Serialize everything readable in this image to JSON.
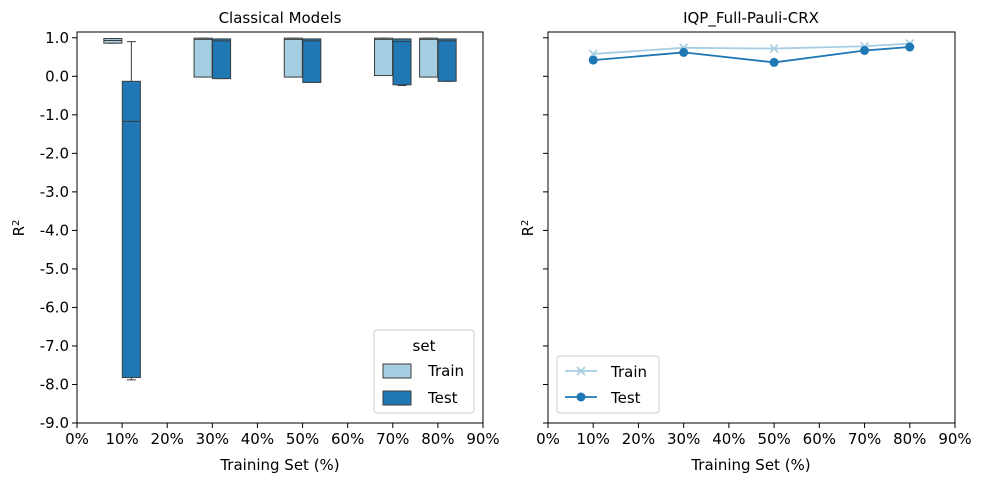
{
  "chart_data": [
    {
      "type": "box",
      "title": "Classical Models",
      "xlabel": "Training Set (%)",
      "ylabel": "R",
      "ylabel_sup": "2",
      "xlim": [
        0,
        90
      ],
      "ylim": [
        -9,
        1.15
      ],
      "x_ticks": [
        0,
        10,
        20,
        30,
        40,
        50,
        60,
        70,
        80,
        90
      ],
      "x_tick_labels": [
        "0%",
        "10%",
        "20%",
        "30%",
        "40%",
        "50%",
        "60%",
        "70%",
        "80%",
        "90%"
      ],
      "y_ticks": [
        1,
        0,
        -1,
        -2,
        -3,
        -4,
        -5,
        -6,
        -7,
        -8,
        -9
      ],
      "y_tick_labels": [
        "1.0",
        "0.0",
        "-1.0",
        "-2.0",
        "-3.0",
        "-4.0",
        "-5.0",
        "-6.0",
        "-7.0",
        "-8.0",
        "-9.0"
      ],
      "legend": {
        "title": "set",
        "position": "lower-right",
        "entries": [
          {
            "label": "Train",
            "color": "#a6cee3"
          },
          {
            "label": "Test",
            "color": "#1f78b4"
          }
        ]
      },
      "series": [
        {
          "name": "Train",
          "color": "#a6cee3",
          "boxes": [
            {
              "x": 10,
              "q1": 0.86,
              "median": 0.93,
              "q3": 0.98,
              "whisker_low": 0.86,
              "whisker_high": 0.98
            },
            {
              "x": 30,
              "q1": -0.02,
              "median": 0.96,
              "q3": 0.99,
              "whisker_low": -0.02,
              "whisker_high": 0.99
            },
            {
              "x": 50,
              "q1": -0.02,
              "median": 0.96,
              "q3": 0.99,
              "whisker_low": -0.02,
              "whisker_high": 0.99
            },
            {
              "x": 70,
              "q1": 0.02,
              "median": 0.96,
              "q3": 0.99,
              "whisker_low": 0.02,
              "whisker_high": 0.99
            },
            {
              "x": 80,
              "q1": -0.02,
              "median": 0.96,
              "q3": 0.99,
              "whisker_low": -0.02,
              "whisker_high": 0.99
            }
          ]
        },
        {
          "name": "Test",
          "color": "#1f78b4",
          "boxes": [
            {
              "x": 10,
              "q1": -7.82,
              "median": -1.17,
              "q3": -0.13,
              "whisker_low": -7.88,
              "whisker_high": 0.9
            },
            {
              "x": 30,
              "q1": -0.06,
              "median": 0.92,
              "q3": 0.97,
              "whisker_low": -0.06,
              "whisker_high": 0.97
            },
            {
              "x": 50,
              "q1": -0.16,
              "median": 0.92,
              "q3": 0.97,
              "whisker_low": -0.16,
              "whisker_high": 0.97
            },
            {
              "x": 70,
              "q1": -0.22,
              "median": 0.9,
              "q3": 0.97,
              "whisker_low": -0.24,
              "whisker_high": 0.97
            },
            {
              "x": 80,
              "q1": -0.13,
              "median": 0.92,
              "q3": 0.97,
              "whisker_low": -0.13,
              "whisker_high": 0.97
            }
          ]
        }
      ]
    },
    {
      "type": "line",
      "title": "IQP_Full-Pauli-CRX",
      "xlabel": "Training Set (%)",
      "ylabel": "R",
      "ylabel_sup": "2",
      "xlim": [
        0,
        90
      ],
      "ylim": [
        -9,
        1.15
      ],
      "x_ticks": [
        0,
        10,
        20,
        30,
        40,
        50,
        60,
        70,
        80,
        90
      ],
      "x_tick_labels": [
        "0%",
        "10%",
        "20%",
        "30%",
        "40%",
        "50%",
        "60%",
        "70%",
        "80%",
        "90%"
      ],
      "y_ticks": [
        1,
        0,
        -1,
        -2,
        -3,
        -4,
        -5,
        -6,
        -7,
        -8,
        -9
      ],
      "shared_y": true,
      "legend": {
        "position": "lower-left",
        "entries": [
          {
            "label": "Train",
            "color": "#a6cee3",
            "marker": "x"
          },
          {
            "label": "Test",
            "color": "#1f78b4",
            "marker": "o"
          }
        ]
      },
      "series": [
        {
          "name": "Train",
          "color": "#a6cee3",
          "marker": "x",
          "x": [
            10,
            30,
            50,
            70,
            80
          ],
          "y": [
            0.58,
            0.74,
            0.72,
            0.78,
            0.85
          ]
        },
        {
          "name": "Test",
          "color": "#1f78b4",
          "marker": "o",
          "x": [
            10,
            30,
            50,
            70,
            80
          ],
          "y": [
            0.42,
            0.62,
            0.36,
            0.67,
            0.76
          ]
        }
      ]
    }
  ]
}
